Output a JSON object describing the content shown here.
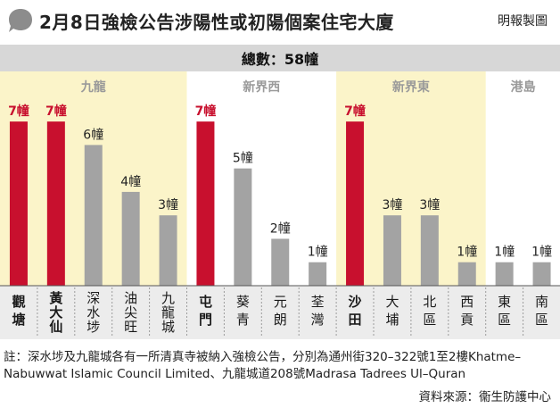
{
  "header": {
    "title": "2月8日強檢公告涉陽性或初陽個案住宅大廈",
    "credit": "明報製圖"
  },
  "total": "總數：58幢",
  "colors": {
    "highlight": "#c8102e",
    "normal": "#a3a3a3",
    "region_band_yellow": "#fbf4c9",
    "region_band_grey": "#ececec",
    "region_label": "#9a9a9a",
    "total_bar": "#d7d7d7"
  },
  "chart_data": {
    "type": "bar",
    "categories": [
      "觀塘",
      "黃大仙",
      "深水埗",
      "油尖旺",
      "九龍城",
      "屯門",
      "葵青",
      "元朗",
      "荃灣",
      "沙田",
      "大埔",
      "北區",
      "西貢",
      "東區",
      "南區"
    ],
    "values": [
      7,
      7,
      6,
      4,
      3,
      7,
      5,
      2,
      1,
      7,
      3,
      3,
      1,
      1,
      1
    ],
    "value_labels": [
      "7幢",
      "7幢",
      "6幢",
      "4幢",
      "3幢",
      "7幢",
      "5幢",
      "2幢",
      "1幢",
      "7幢",
      "3幢",
      "3幢",
      "1幢",
      "1幢",
      "1幢"
    ],
    "highlighted": [
      true,
      true,
      false,
      false,
      false,
      true,
      false,
      false,
      false,
      true,
      false,
      false,
      false,
      false,
      false
    ],
    "regions": [
      {
        "name": "九龍",
        "start": 0,
        "end": 4,
        "band": "yellow"
      },
      {
        "name": "新界西",
        "start": 5,
        "end": 8,
        "band": "none"
      },
      {
        "name": "新界東",
        "start": 9,
        "end": 12,
        "band": "yellow"
      },
      {
        "name": "港島",
        "start": 13,
        "end": 14,
        "band": "none"
      }
    ],
    "ylim": [
      0,
      7.5
    ]
  },
  "footnote": "註：深水埗及九龍城各有一所清真寺被納入強檢公告，分別為通州街320–322號1至2樓Khatme–Nabuwwat Islamic Council Limited、九龍城道208號Madrasa Tadrees Ul–Quran",
  "source": "資料來源：衞生防護中心"
}
